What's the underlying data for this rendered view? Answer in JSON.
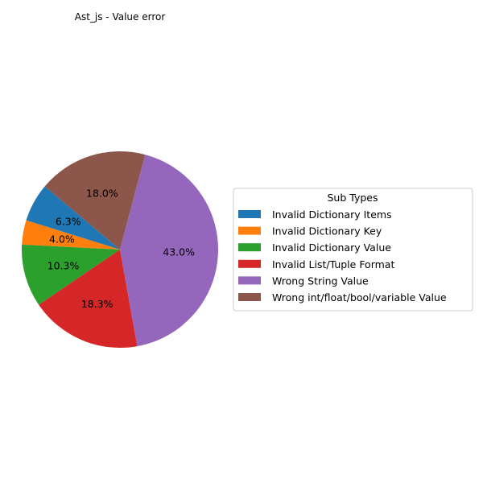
{
  "chart_data": {
    "type": "pie",
    "title": "Ast_js - Value error",
    "legend_title": "Sub Types",
    "legend_position": "right",
    "slices": [
      {
        "label": "Invalid Dictionary Items",
        "value": 6.3,
        "pct_label": "6.3%",
        "color": "#1f77b4"
      },
      {
        "label": "Invalid Dictionary Key",
        "value": 4.0,
        "pct_label": "4.0%",
        "color": "#ff7f0e"
      },
      {
        "label": "Invalid Dictionary Value",
        "value": 10.3,
        "pct_label": "10.3%",
        "color": "#2ca02c"
      },
      {
        "label": "Invalid List/Tuple Format",
        "value": 18.3,
        "pct_label": "18.3%",
        "color": "#d62728"
      },
      {
        "label": "Wrong String Value",
        "value": 43.0,
        "pct_label": "43.0%",
        "color": "#9467bd"
      },
      {
        "label": "Wrong int/float/bool/variable Value",
        "value": 18.0,
        "pct_label": "18.0%",
        "color": "#8c564b"
      }
    ]
  }
}
